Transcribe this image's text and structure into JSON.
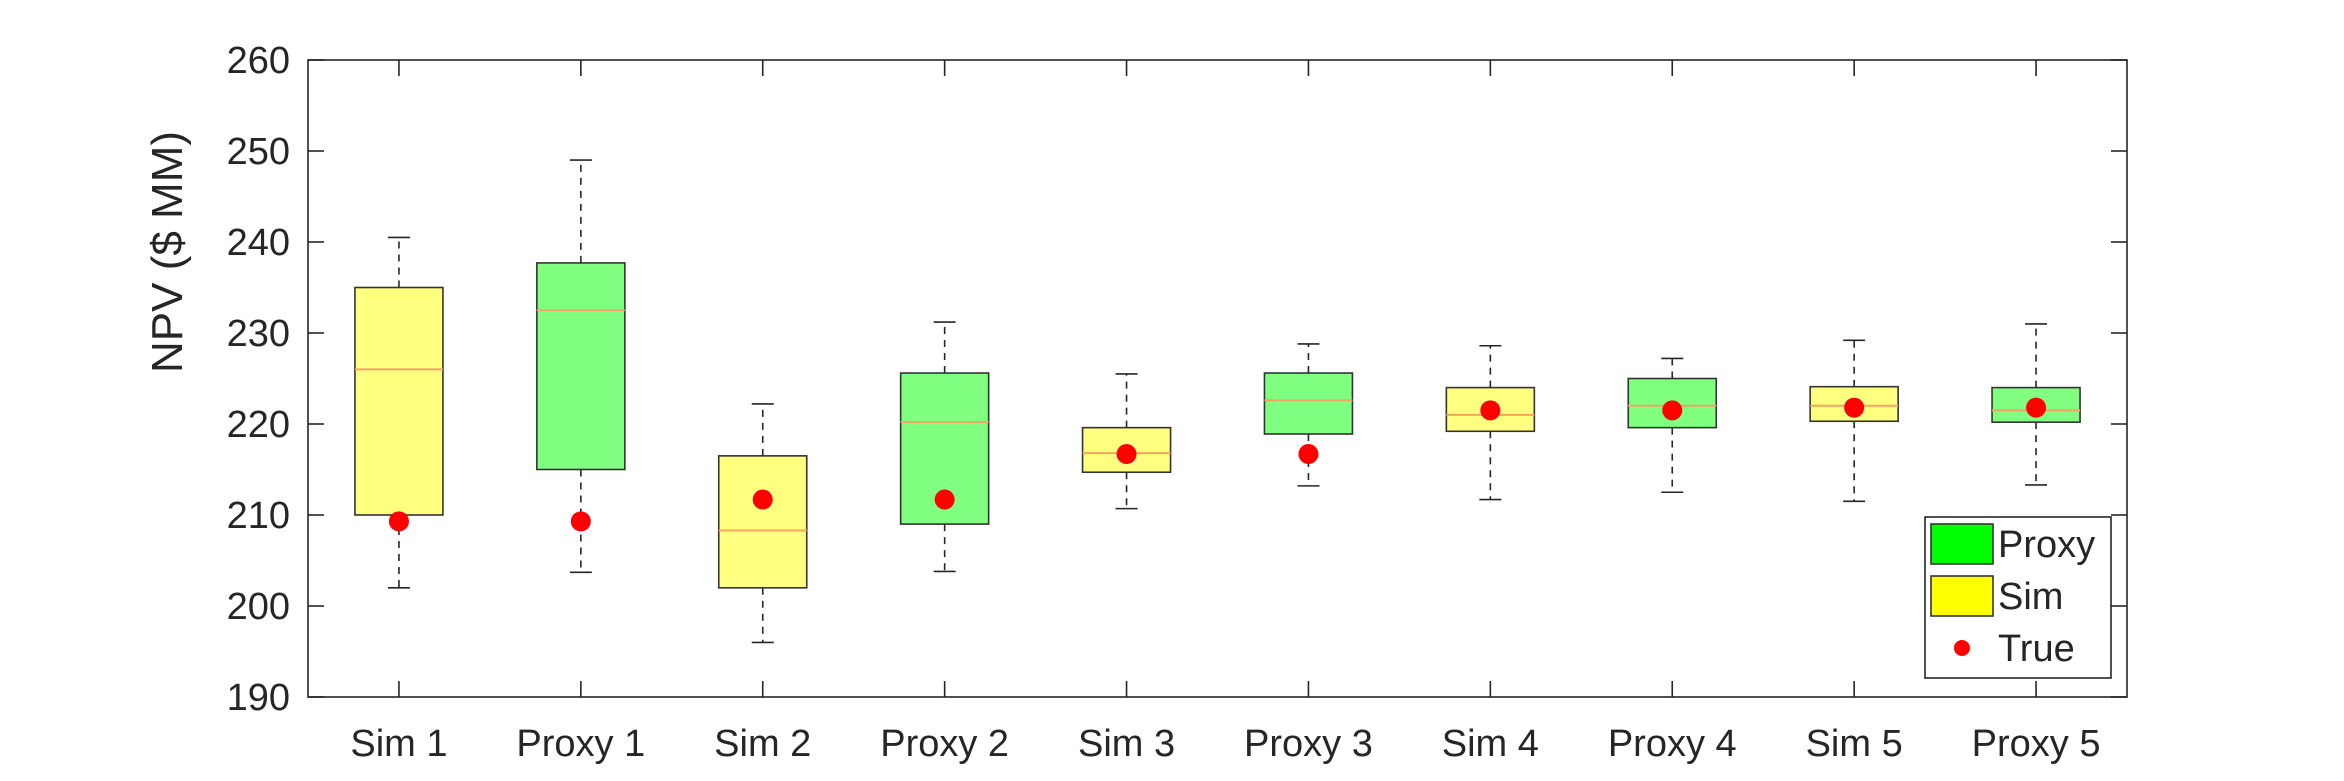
{
  "chart_data": {
    "type": "box",
    "title": "",
    "xlabel": "",
    "ylabel": "NPV ($ MM)",
    "ylim": [
      190,
      260
    ],
    "yticks": [
      190,
      200,
      210,
      220,
      230,
      240,
      250,
      260
    ],
    "grid": false,
    "legend_position": "bottom-right",
    "legend": [
      {
        "label": "Proxy",
        "kind": "box",
        "color": "#00ff00"
      },
      {
        "label": "Sim",
        "kind": "box",
        "color": "#ffff00"
      },
      {
        "label": "True",
        "kind": "marker",
        "color": "#ff0000"
      }
    ],
    "colors": {
      "proxy_fill": "#80ff80",
      "sim_fill": "#ffff80",
      "median": "#f4a460",
      "true_marker": "#ff0000",
      "axis": "#262626",
      "whisker": "#262626"
    },
    "boxes": [
      {
        "label": "Sim 1",
        "group": "Sim",
        "whisker_low": 202.0,
        "q1": 210.0,
        "median": 226.0,
        "q3": 235.0,
        "whisker_high": 240.5,
        "true": 209.3
      },
      {
        "label": "Proxy 1",
        "group": "Proxy",
        "whisker_low": 203.7,
        "q1": 215.0,
        "median": 232.5,
        "q3": 237.7,
        "whisker_high": 249.0,
        "true": 209.3
      },
      {
        "label": "Sim 2",
        "group": "Sim",
        "whisker_low": 196.0,
        "q1": 202.0,
        "median": 208.3,
        "q3": 216.5,
        "whisker_high": 222.2,
        "true": 211.7
      },
      {
        "label": "Proxy 2",
        "group": "Proxy",
        "whisker_low": 203.8,
        "q1": 209.0,
        "median": 220.2,
        "q3": 225.6,
        "whisker_high": 231.2,
        "true": 211.7
      },
      {
        "label": "Sim 3",
        "group": "Sim",
        "whisker_low": 210.7,
        "q1": 214.7,
        "median": 216.8,
        "q3": 219.6,
        "whisker_high": 225.5,
        "true": 216.7
      },
      {
        "label": "Proxy 3",
        "group": "Proxy",
        "whisker_low": 213.2,
        "q1": 218.9,
        "median": 222.6,
        "q3": 225.6,
        "whisker_high": 228.8,
        "true": 216.7
      },
      {
        "label": "Sim 4",
        "group": "Sim",
        "whisker_low": 211.7,
        "q1": 219.2,
        "median": 221.0,
        "q3": 224.0,
        "whisker_high": 228.6,
        "true": 221.5
      },
      {
        "label": "Proxy 4",
        "group": "Proxy",
        "whisker_low": 212.5,
        "q1": 219.6,
        "median": 222.0,
        "q3": 225.0,
        "whisker_high": 227.2,
        "true": 221.5
      },
      {
        "label": "Sim 5",
        "group": "Sim",
        "whisker_low": 211.5,
        "q1": 220.3,
        "median": 222.0,
        "q3": 224.1,
        "whisker_high": 229.2,
        "true": 221.8
      },
      {
        "label": "Proxy 5",
        "group": "Proxy",
        "whisker_low": 213.3,
        "q1": 220.2,
        "median": 221.5,
        "q3": 224.0,
        "whisker_high": 231.0,
        "true": 221.8
      }
    ]
  }
}
